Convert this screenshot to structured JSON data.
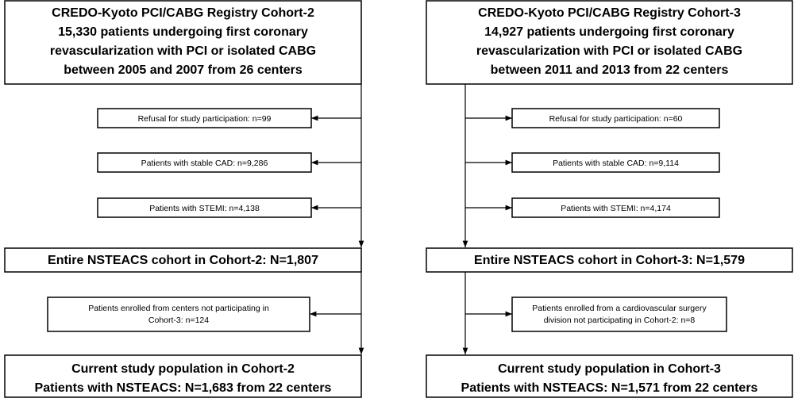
{
  "cohort2": {
    "source": [
      "CREDO-Kyoto PCI/CABG Registry Cohort-2",
      "15,330 patients undergoing first coronary",
      "revascularization with PCI or isolated CABG",
      "between 2005 and 2007 from 26 centers"
    ],
    "exclusions": [
      "Refusal for study participation: n=99",
      "Patients with stable CAD: n=9,286",
      "Patients with STEMI: n=4,138"
    ],
    "entire": "Entire NSTEACS cohort in Cohort-2: N=1,807",
    "exclusion2": [
      "Patients enrolled from centers not participating in",
      "Cohort-3: n=124"
    ],
    "final": [
      "Current study population in Cohort-2",
      "Patients with NSTEACS: N=1,683 from 22 centers"
    ]
  },
  "cohort3": {
    "source": [
      "CREDO-Kyoto PCI/CABG Registry Cohort-3",
      "14,927 patients undergoing first coronary",
      "revascularization with PCI or isolated CABG",
      "between 2011 and 2013 from 22 centers"
    ],
    "exclusions": [
      "Refusal for study participation: n=60",
      "Patients with stable CAD: n=9,114",
      "Patients with STEMI: n=4,174"
    ],
    "entire": "Entire NSTEACS cohort in Cohort-3: N=1,579",
    "exclusion2": [
      "Patients enrolled from a cardiovascular surgery",
      "division not participating in Cohort-2: n=8"
    ],
    "final": [
      "Current study population in Cohort-3",
      "Patients with NSTEACS: N=1,571 from 22 centers"
    ]
  }
}
